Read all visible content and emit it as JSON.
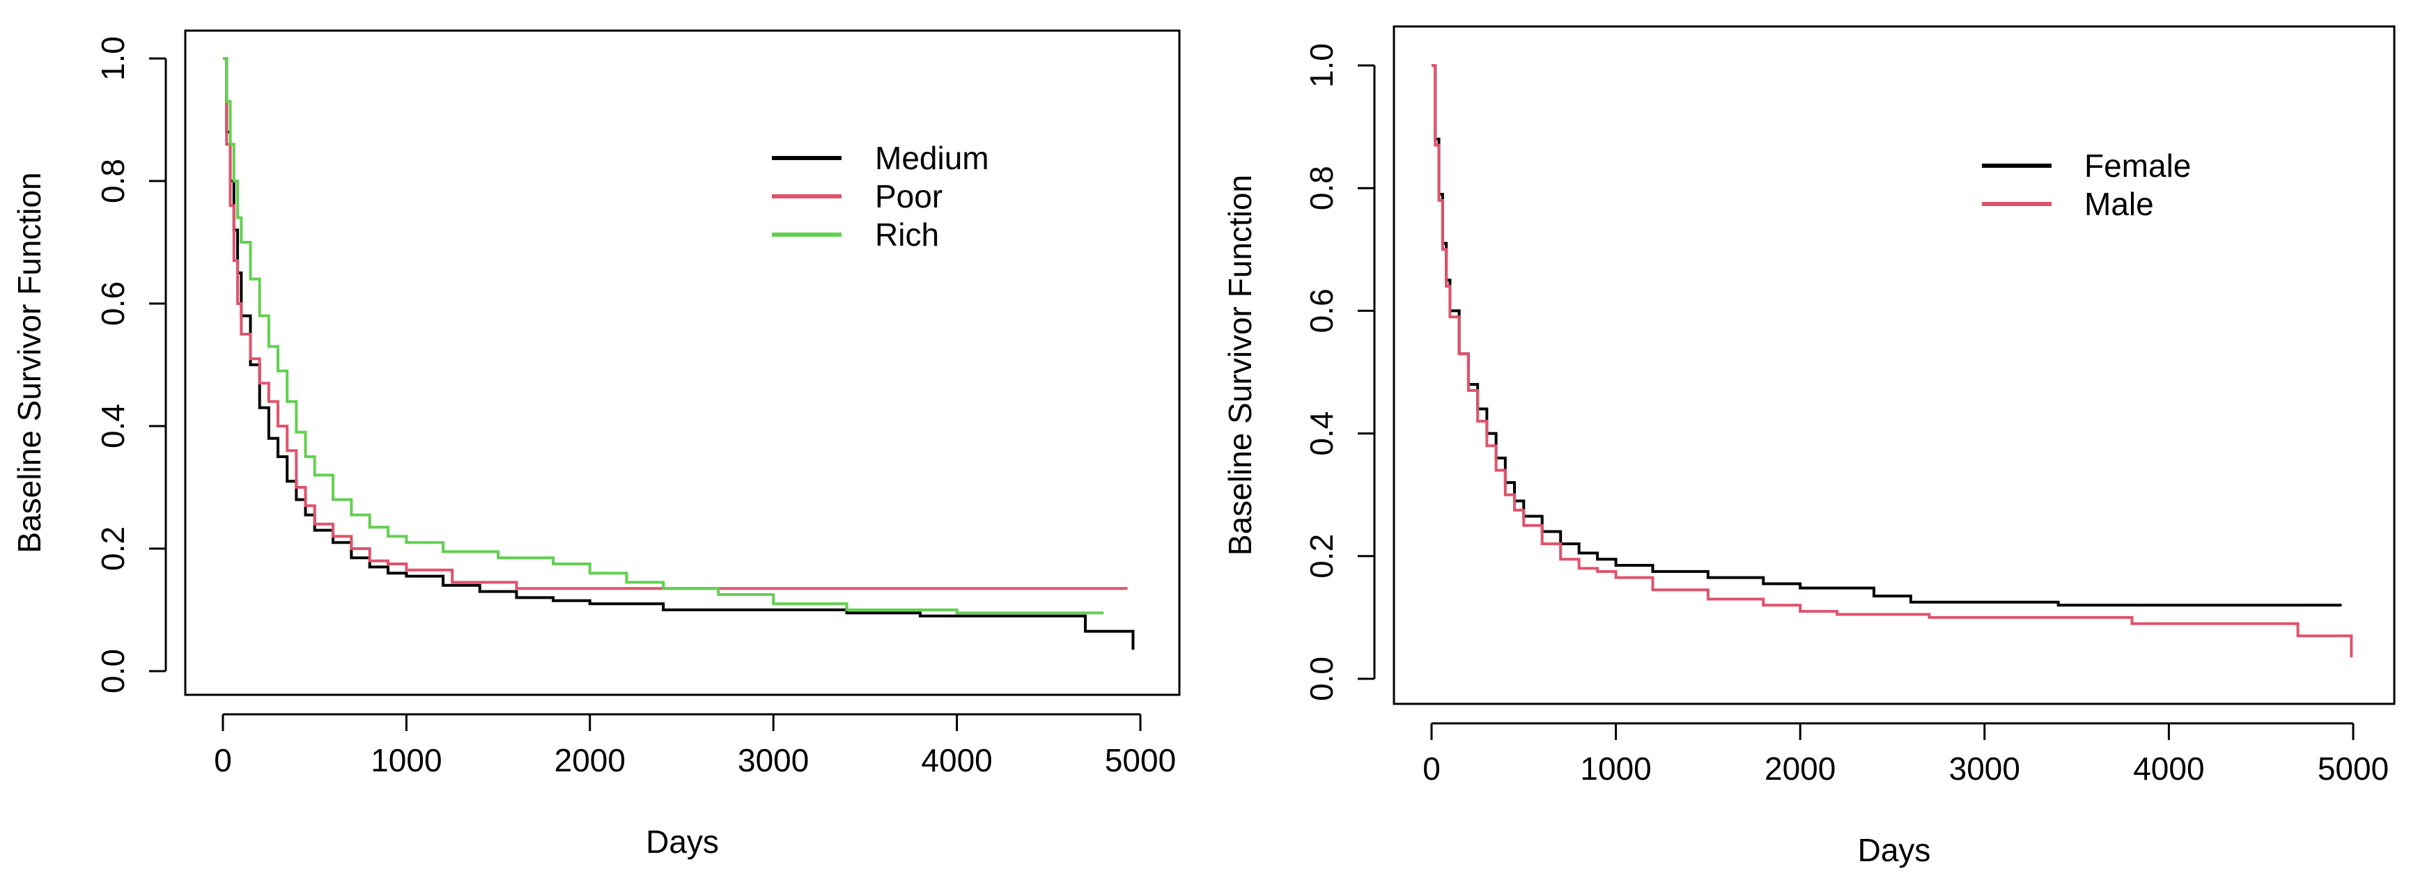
{
  "chart_data": [
    {
      "type": "line",
      "step": true,
      "xlabel": "Days",
      "ylabel": "Baseline Survivor Function",
      "xlim": [
        0,
        5000
      ],
      "ylim": [
        0,
        1
      ],
      "x_ticks": [
        "0",
        "1000",
        "2000",
        "3000",
        "4000",
        "5000"
      ],
      "y_ticks": [
        "0.0",
        "0.2",
        "0.4",
        "0.6",
        "0.8",
        "1.0"
      ],
      "grid": false,
      "legend": "top-right",
      "series": [
        {
          "name": "Medium",
          "color": "#000000",
          "x": [
            0,
            20,
            40,
            60,
            80,
            100,
            150,
            200,
            250,
            300,
            350,
            400,
            450,
            500,
            600,
            700,
            800,
            900,
            1000,
            1200,
            1400,
            1600,
            1800,
            2000,
            2400,
            2800,
            3400,
            3800,
            4700,
            4960
          ],
          "y": [
            1.0,
            0.88,
            0.8,
            0.72,
            0.65,
            0.58,
            0.5,
            0.43,
            0.38,
            0.35,
            0.31,
            0.28,
            0.255,
            0.23,
            0.21,
            0.185,
            0.17,
            0.16,
            0.155,
            0.14,
            0.13,
            0.12,
            0.115,
            0.11,
            0.1,
            0.1,
            0.095,
            0.09,
            0.065,
            0.035
          ]
        },
        {
          "name": "Poor",
          "color": "#DF536B",
          "x": [
            0,
            20,
            40,
            60,
            80,
            100,
            150,
            200,
            250,
            300,
            350,
            400,
            450,
            500,
            600,
            700,
            800,
            900,
            1000,
            1250,
            1600,
            4930
          ],
          "y": [
            1.0,
            0.86,
            0.76,
            0.67,
            0.6,
            0.55,
            0.51,
            0.47,
            0.44,
            0.4,
            0.36,
            0.3,
            0.27,
            0.24,
            0.22,
            0.2,
            0.18,
            0.175,
            0.165,
            0.145,
            0.135,
            0.135
          ]
        },
        {
          "name": "Rich",
          "color": "#61D04F",
          "x": [
            0,
            20,
            40,
            60,
            80,
            100,
            150,
            200,
            250,
            300,
            350,
            400,
            450,
            500,
            600,
            700,
            800,
            900,
            1000,
            1200,
            1500,
            1800,
            2000,
            2200,
            2400,
            2700,
            3000,
            3400,
            4000,
            4800
          ],
          "y": [
            1.0,
            0.93,
            0.86,
            0.8,
            0.74,
            0.7,
            0.64,
            0.58,
            0.53,
            0.49,
            0.44,
            0.39,
            0.35,
            0.32,
            0.28,
            0.255,
            0.235,
            0.22,
            0.21,
            0.195,
            0.185,
            0.175,
            0.16,
            0.145,
            0.135,
            0.125,
            0.11,
            0.1,
            0.095,
            0.095
          ]
        }
      ]
    },
    {
      "type": "line",
      "step": true,
      "xlabel": "Days",
      "ylabel": "Baseline Survivor Function",
      "xlim": [
        0,
        5000
      ],
      "ylim": [
        0,
        1
      ],
      "x_ticks": [
        "0",
        "1000",
        "2000",
        "3000",
        "4000",
        "5000"
      ],
      "y_ticks": [
        "0.0",
        "0.2",
        "0.4",
        "0.6",
        "0.8",
        "1.0"
      ],
      "grid": false,
      "legend": "top-right",
      "series": [
        {
          "name": "Female",
          "color": "#000000",
          "x": [
            0,
            20,
            40,
            60,
            80,
            100,
            150,
            200,
            250,
            300,
            350,
            400,
            450,
            500,
            600,
            700,
            800,
            900,
            1000,
            1200,
            1500,
            1800,
            2000,
            2400,
            2600,
            3000,
            3400,
            4000,
            4930
          ],
          "y": [
            1.0,
            0.88,
            0.79,
            0.71,
            0.65,
            0.6,
            0.53,
            0.48,
            0.44,
            0.4,
            0.36,
            0.32,
            0.29,
            0.265,
            0.24,
            0.22,
            0.205,
            0.195,
            0.185,
            0.175,
            0.165,
            0.155,
            0.148,
            0.135,
            0.125,
            0.125,
            0.12,
            0.12,
            0.118
          ]
        },
        {
          "name": "Male",
          "color": "#DF536B",
          "x": [
            0,
            20,
            40,
            60,
            80,
            100,
            150,
            200,
            250,
            300,
            350,
            400,
            450,
            500,
            600,
            700,
            800,
            900,
            1000,
            1200,
            1500,
            1800,
            2000,
            2200,
            2700,
            3000,
            3800,
            4700,
            4990
          ],
          "y": [
            1.0,
            0.87,
            0.78,
            0.7,
            0.64,
            0.59,
            0.53,
            0.47,
            0.42,
            0.38,
            0.34,
            0.3,
            0.275,
            0.25,
            0.22,
            0.195,
            0.18,
            0.175,
            0.165,
            0.145,
            0.13,
            0.12,
            0.11,
            0.105,
            0.1,
            0.1,
            0.09,
            0.07,
            0.035
          ]
        }
      ]
    }
  ]
}
